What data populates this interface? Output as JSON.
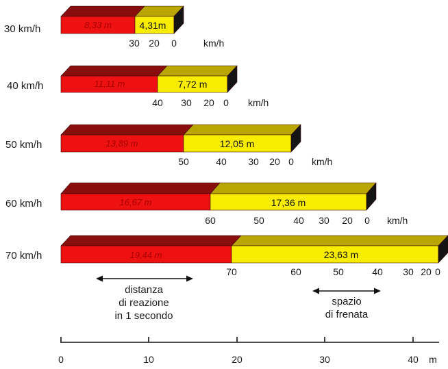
{
  "rows": [
    {
      "speed": "30 km/h",
      "reaction_m": 8.33,
      "braking_m": 4.31,
      "reaction_label": "8,33 m",
      "braking_label": "4,31m",
      "ticks": [
        "30",
        "20",
        "0"
      ],
      "unit": "km/h"
    },
    {
      "speed": "40 km/h",
      "reaction_m": 11.11,
      "braking_m": 7.72,
      "reaction_label": "11,11 m",
      "braking_label": "7,72 m",
      "ticks": [
        "40",
        "30",
        "20",
        "0"
      ],
      "unit": "km/h"
    },
    {
      "speed": "50 km/h",
      "reaction_m": 13.89,
      "braking_m": 12.05,
      "reaction_label": "13,89 m",
      "braking_label": "12,05 m",
      "ticks": [
        "50",
        "40",
        "30",
        "20",
        "0"
      ],
      "unit": "km/h"
    },
    {
      "speed": "60 km/h",
      "reaction_m": 16.67,
      "braking_m": 17.36,
      "reaction_label": "16,67 m",
      "braking_label": "17,36 m",
      "ticks": [
        "60",
        "50",
        "40",
        "30",
        "20",
        "0"
      ],
      "unit": "km/h"
    },
    {
      "speed": "70 km/h",
      "reaction_m": 19.44,
      "braking_m": 23.63,
      "reaction_label": "19,44 m",
      "braking_label": "23,63 m",
      "ticks": [
        "70",
        "60",
        "50",
        "40",
        "30",
        "20",
        "0"
      ],
      "unit": ""
    }
  ],
  "notes": {
    "reaction": [
      "distanza",
      "di reazione",
      "in 1 secondo"
    ],
    "braking": [
      "spazio",
      "di frenata"
    ]
  },
  "axis": {
    "ticks": [
      "0",
      "10",
      "20",
      "30",
      "40"
    ],
    "unit": "m"
  },
  "colors": {
    "reaction_front": "#ee1111",
    "reaction_top": "#8a0d0d",
    "braking_front": "#f8ec00",
    "braking_top": "#b9a600",
    "side": "#141414"
  }
}
